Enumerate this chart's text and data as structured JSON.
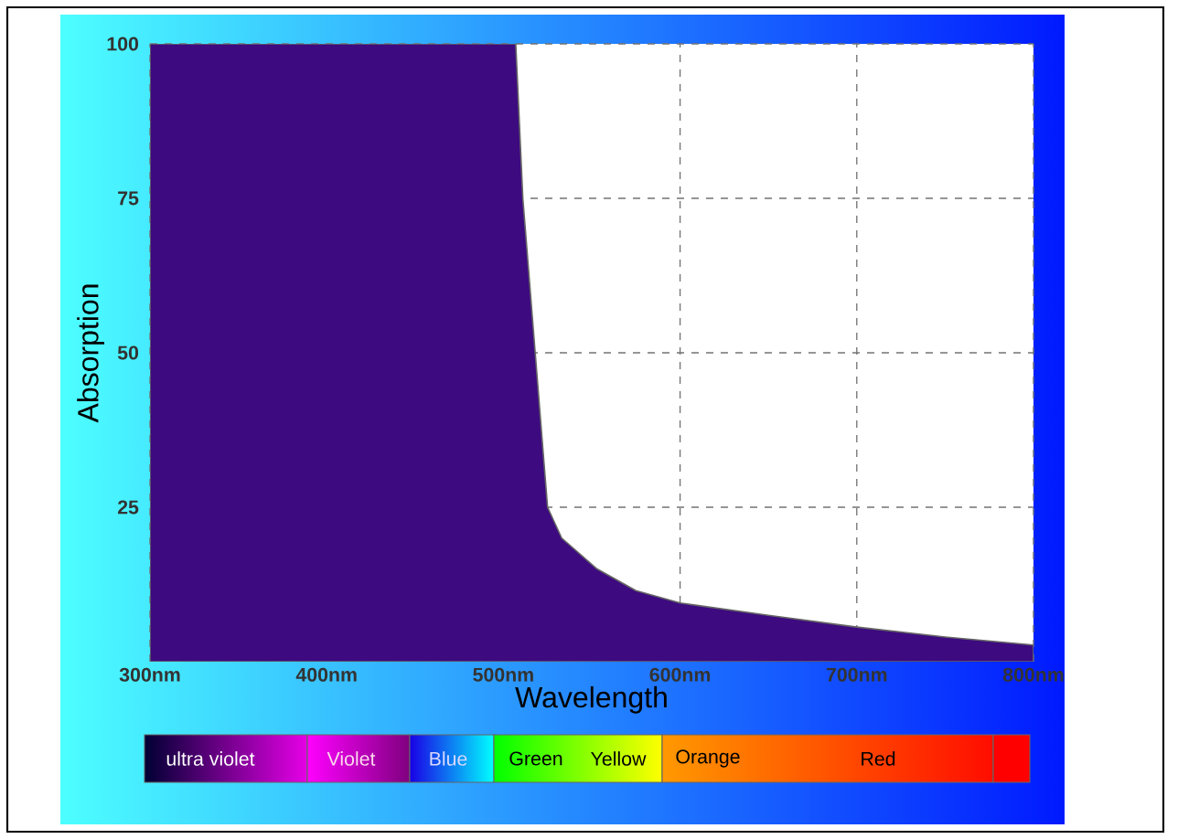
{
  "chart_data": {
    "type": "area",
    "xlabel": "Wavelength",
    "ylabel": "Absorption",
    "x": [
      300,
      507,
      511,
      518,
      525,
      533,
      553,
      575,
      600,
      650,
      700,
      750,
      800
    ],
    "series": [
      {
        "color": "#3d0a80",
        "values": [
          100,
          100,
          75,
          50,
          25,
          20,
          15,
          11.5,
          9.5,
          7.5,
          5.6,
          4,
          2.7
        ]
      }
    ],
    "xlim": [
      300,
      800
    ],
    "ylim": [
      0,
      100
    ],
    "xticks": [
      {
        "value": 300,
        "label": "300nm"
      },
      {
        "value": 400,
        "label": "400nm"
      },
      {
        "value": 500,
        "label": "500nm"
      },
      {
        "value": 600,
        "label": "600nm"
      },
      {
        "value": 700,
        "label": "700nm"
      },
      {
        "value": 800,
        "label": "800nm"
      }
    ],
    "yticks": [
      25,
      50,
      75,
      100
    ],
    "grid": true,
    "annotations": [
      "ultra violet",
      "Violet",
      "Blue",
      "Green",
      "Yellow",
      "Orange",
      "Red"
    ]
  }
}
